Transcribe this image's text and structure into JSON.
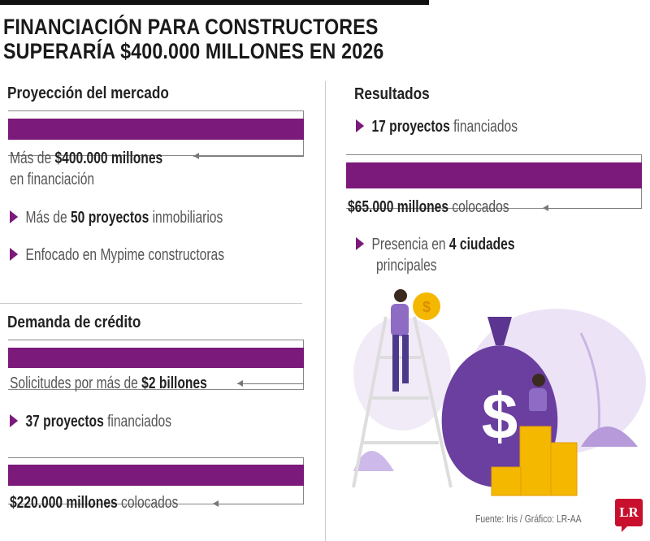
{
  "title": {
    "line1": "FINANCIACIÓN PARA CONSTRUCTORES",
    "line2": "SUPERARÍA $400.000 MILLONES EN 2026"
  },
  "left": {
    "proyeccion": {
      "heading": "Proyección del mercado",
      "highlight": {
        "pre": "Más de ",
        "bold": "$400.000 millones",
        "line2": "en financiación"
      },
      "bullets": [
        {
          "pre": "Más de ",
          "bold": "50 proyectos",
          "post": " inmobiliarios"
        },
        {
          "pre": "Enfocado en Mypime constructoras",
          "bold": "",
          "post": ""
        }
      ]
    },
    "demanda": {
      "heading": "Demanda de crédito",
      "highlight": {
        "pre": "Solicitudes por más de ",
        "bold": "$2 billones"
      },
      "bullets": [
        {
          "bold": "37 proyectos",
          "post": " financiados"
        }
      ],
      "highlight2": {
        "bold": "$220.000 millones",
        "post": " colocados"
      }
    }
  },
  "right": {
    "heading": "Resultados",
    "bullet1": {
      "bold": "17 proyectos",
      "post": " financiados"
    },
    "highlight": {
      "bold": "$65.000 millones",
      "post": " colocados"
    },
    "bullet2": {
      "pre": "Presencia en ",
      "bold": "4 ciudades",
      "line2": "principales"
    }
  },
  "illustration": {
    "bag_symbol": "$",
    "coin_symbol": "$"
  },
  "footer": {
    "source": "Fuente: Iris / Gráfico: LR-AA",
    "logo": "LR"
  },
  "colors": {
    "accent": "#7b1a7a",
    "logo": "#c8102e",
    "coins": "#f5b800",
    "bag": "#6a3fa0"
  }
}
